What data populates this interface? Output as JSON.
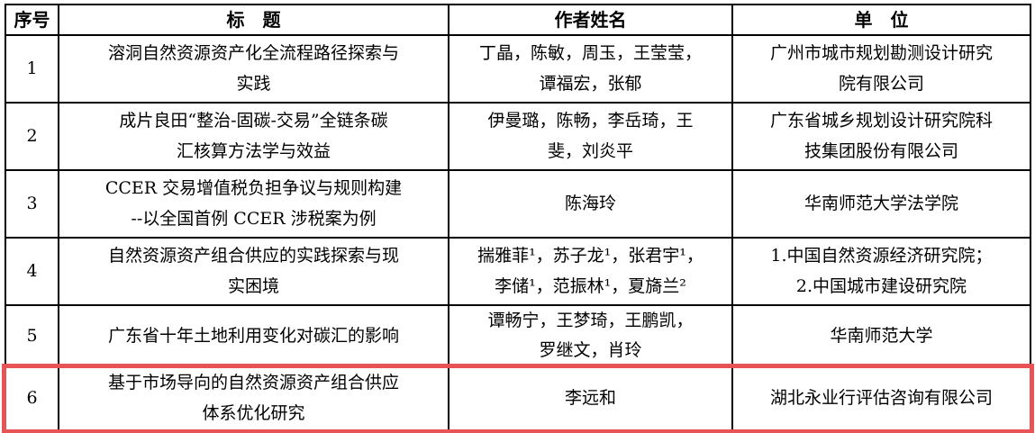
{
  "table": {
    "headers": {
      "index": "序号",
      "title": "标　题",
      "authors": "作者姓名",
      "unit": "单　位"
    },
    "rows": [
      {
        "index": "1",
        "title": "溶洞自然资源资产化全流程路径探索与\n实践",
        "authors": "丁晶，陈敏，周玉，王莹莹，\n谭福宏，张郁",
        "unit": "广州市城市规划勘测设计研究\n院有限公司",
        "highlighted": false
      },
      {
        "index": "2",
        "title": "成片良田“整治-固碳-交易”全链条碳\n汇核算方法学与效益",
        "authors": "伊曼璐，陈畅，李岳琦，王\n斐，刘炎平",
        "unit": "广东省城乡规划设计研究院科\n技集团股份有限公司",
        "highlighted": false
      },
      {
        "index": "3",
        "title": "CCER 交易增值税负担争议与规则构建\n--以全国首例 CCER 涉税案为例",
        "authors": "陈海玲",
        "unit": "华南师范大学法学院",
        "highlighted": false
      },
      {
        "index": "4",
        "title": "自然资源资产组合供应的实践探索与现\n实困境",
        "authors": "揣雅菲¹，苏子龙¹，张君宇¹，\n李储¹，范振林¹，夏旖兰²",
        "unit": "1.中国自然资源经济研究院；\n2.中国城市建设研究院",
        "highlighted": false
      },
      {
        "index": "5",
        "title": "广东省十年土地利用变化对碳汇的影响",
        "authors": "谭畅宁，王梦琦，王鹏凯，\n罗继文，肖玲",
        "unit": "华南师范大学",
        "highlighted": false
      },
      {
        "index": "6",
        "title": "基于市场导向的自然资源资产组合供应\n体系优化研究",
        "authors": "李远和",
        "unit": "湖北永业行评估咨询有限公司",
        "highlighted": true
      },
      {
        "index": "",
        "title": "",
        "authors": "",
        "unit": "",
        "highlighted": false,
        "partial": true
      }
    ],
    "colors": {
      "highlight_box": "#e85456",
      "border": "#000000",
      "text": "#000000"
    }
  }
}
